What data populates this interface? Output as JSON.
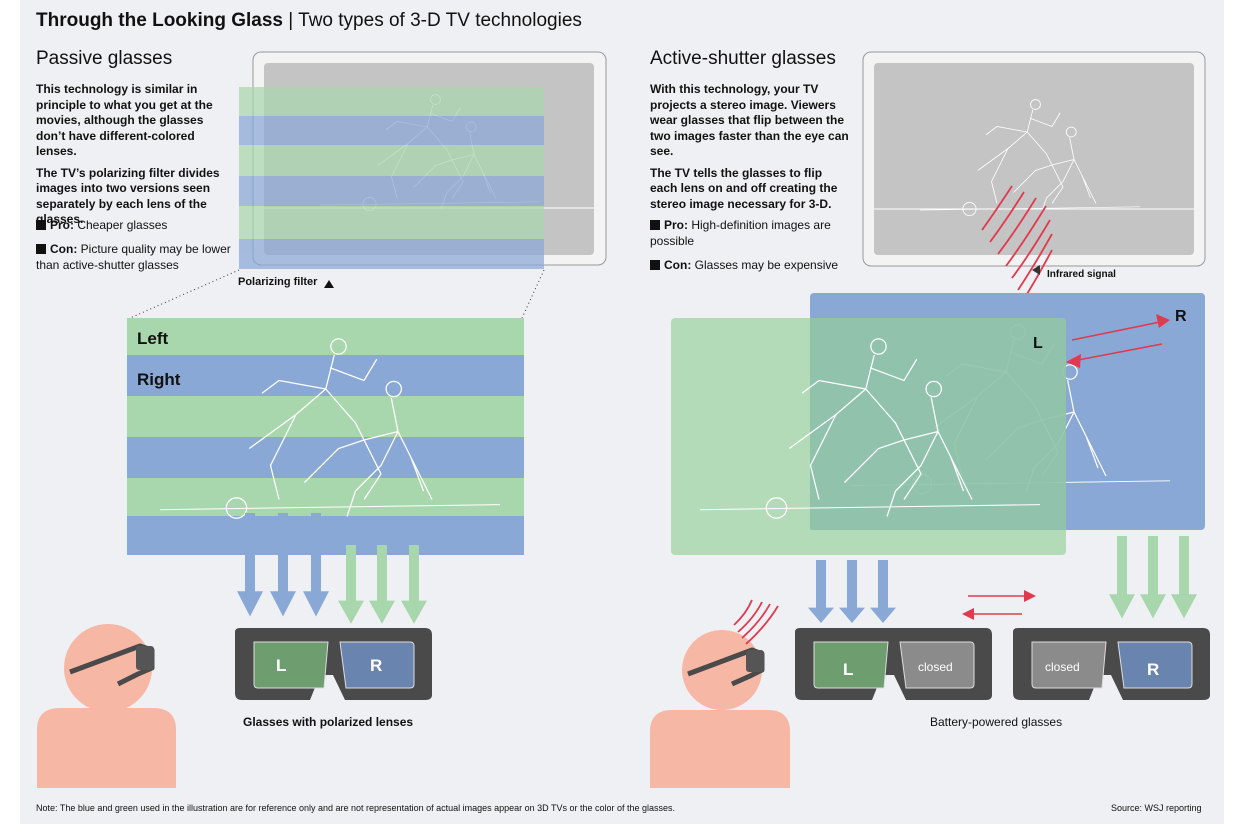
{
  "header": {
    "title_bold": "Through the Looking Glass",
    "separator": " | ",
    "subtitle": "Two types of 3-D TV technologies"
  },
  "passive": {
    "heading": "Passive glasses",
    "para1": "This technology is similar in principle to what you get at the movies, although the glasses don’t have different-colored lenses.",
    "para2": "The TV’s polarizing filter divides images into two versions seen separately by each lens of the glasses.",
    "pro_label": "Pro:",
    "pro_text": "Cheaper glasses",
    "con_label": "Con:",
    "con_text": "Picture quality may be lower than active-shutter glasses",
    "filter_label": "Polarizing filter",
    "stripe_left": "Left",
    "stripe_right": "Right",
    "lens_left": "L",
    "lens_right": "R",
    "glasses_caption": "Glasses with polarized lenses"
  },
  "active": {
    "heading": "Active-shutter glasses",
    "para1": "With this technology, your TV projects a stereo image.  Viewers wear glasses that flip between the two images faster than the eye can see.",
    "para2": "The TV tells the glasses to flip each lens on and off creating the stereo image necessary for 3-D.",
    "pro_label": "Pro:",
    "pro_text": "High-definition images are possible",
    "con_label": "Con:",
    "con_text": "Glasses may be expensive",
    "signal_label": "Infrared signal",
    "image_left": "L",
    "image_right": "R",
    "glasses1_lens": "L",
    "glasses1_closed": "closed",
    "glasses2_closed": "closed",
    "glasses2_lens": "R",
    "glasses_caption": "Battery-powered glasses"
  },
  "footer": {
    "note": "Note: The blue and green used in the illustration are for reference only and are not representation of actual images appear on 3D TVs or the color of the glasses.",
    "source": "Source: WSJ reporting"
  },
  "colors": {
    "background": "#eef0f3",
    "green": "#a9d7ad",
    "blue": "#8aa8d6",
    "lens_green": "#6e9e70",
    "lens_blue": "#6a84b0",
    "frame": "#4a4a4a",
    "skin": "#f6b7a5",
    "signal_red": "#e03a4e",
    "tv_frame": "#f3f3f3",
    "tv_screen": "#c4c4c4"
  },
  "icons": [
    "triangle-up-icon",
    "triangle-left-icon",
    "arrow-down-icon",
    "arrow-right-icon",
    "arrow-left-icon",
    "infrared-waves-icon",
    "viewer-icon"
  ]
}
